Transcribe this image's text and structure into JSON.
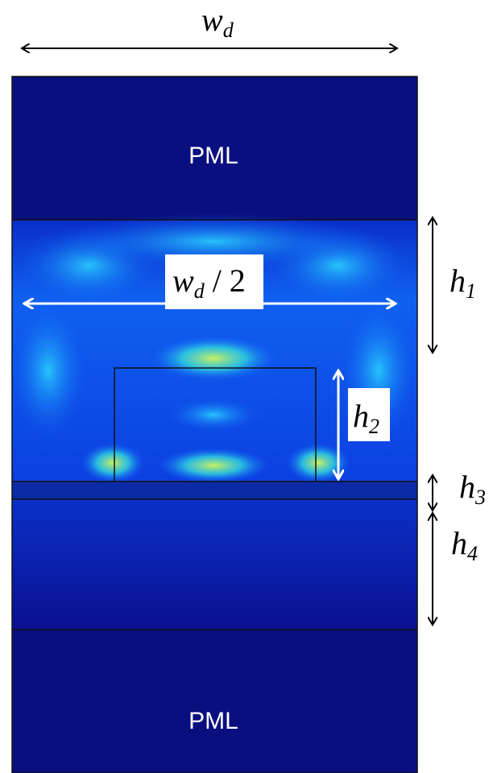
{
  "regions": {
    "top": "PML",
    "bottom": "PML"
  },
  "labels": {
    "width": {
      "symbol": "w",
      "subscript": "d"
    },
    "half_width": {
      "symbol": "w",
      "subscript": "d",
      "suffix": " / 2"
    },
    "h1": {
      "symbol": "h",
      "subscript": "1"
    },
    "h2": {
      "symbol": "h",
      "subscript": "2"
    },
    "h3": {
      "symbol": "h",
      "subscript": "3"
    },
    "h4": {
      "symbol": "h",
      "subscript": "4"
    }
  }
}
